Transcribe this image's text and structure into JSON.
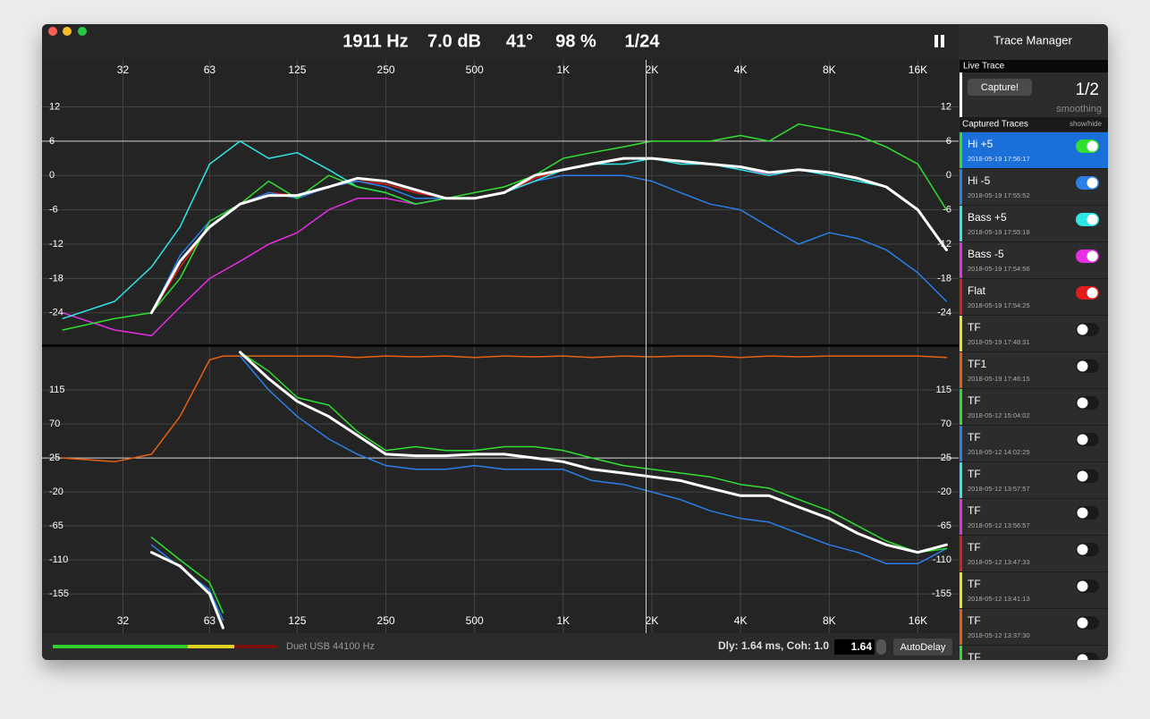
{
  "header": {
    "readouts": [
      "1911 Hz",
      "7.0 dB",
      "41°",
      "98 %",
      "1/24"
    ]
  },
  "chart_data": [
    {
      "type": "line",
      "xscale": "log",
      "xlim": [
        17,
        22000
      ],
      "ylim": [
        -29.5,
        20.2
      ],
      "xticks": [
        32,
        63,
        125,
        250,
        500,
        {
          "value": 1000,
          "label": "1K"
        },
        {
          "value": 2000,
          "label": "2K"
        },
        {
          "value": 4000,
          "label": "4K"
        },
        {
          "value": 8000,
          "label": "8K"
        },
        {
          "value": 16000,
          "label": "16K"
        }
      ],
      "yticks": [
        12,
        6,
        0,
        -6,
        -12,
        -18,
        -24
      ],
      "grid": true,
      "reference_y": 6,
      "cursor_x": 1911,
      "x": [
        20,
        30,
        40,
        50,
        63,
        80,
        100,
        125,
        160,
        200,
        250,
        315,
        400,
        500,
        630,
        800,
        1000,
        1250,
        1600,
        2000,
        2500,
        3150,
        4000,
        5000,
        6300,
        8000,
        10000,
        12500,
        16000,
        20000
      ],
      "series": [
        {
          "color": "#e21c1c",
          "width": 1.5,
          "values": [
            null,
            null,
            -24,
            -16,
            -9,
            -5,
            -3,
            -3.5,
            -2,
            -1,
            -1.5,
            -3,
            -4,
            -4,
            -3,
            -0.5,
            1,
            2,
            3,
            3,
            2.5,
            2,
            1.5,
            0.5,
            1,
            0.5,
            -0.5,
            -2,
            -6,
            -13
          ]
        },
        {
          "color": "#2a7fe8",
          "width": 1.5,
          "values": [
            null,
            null,
            -24,
            -14,
            -8,
            -5,
            -3,
            -4,
            -2,
            -1,
            -2,
            -4,
            -4,
            -4,
            -3,
            -1,
            0,
            0,
            0,
            -1,
            -3,
            -5,
            -6,
            -9,
            -12,
            -10,
            -11,
            -13,
            -17,
            -22
          ]
        },
        {
          "color": "#e62ee6",
          "width": 1.5,
          "values": [
            -24,
            -27,
            -28,
            -23,
            -18,
            -15,
            -12,
            -10,
            -6,
            -4,
            -4,
            -5,
            -4,
            -4,
            -3,
            -1,
            1,
            2,
            3,
            3,
            2.5,
            2,
            1.5,
            0,
            1,
            0.5,
            -0.5,
            -2,
            -6,
            -13
          ]
        },
        {
          "color": "#2ee6e6",
          "width": 1.5,
          "values": [
            -25,
            -22,
            -16,
            -9,
            2,
            6,
            3,
            4,
            1,
            -2,
            -3,
            -5,
            -4,
            -4,
            -3,
            -1,
            1,
            2,
            2,
            3,
            2,
            2,
            1,
            0,
            1,
            0,
            -1,
            -2,
            -6,
            -13
          ]
        },
        {
          "color": "#2fe02f",
          "width": 1.5,
          "values": [
            -27,
            -25,
            -24,
            -18,
            -8,
            -5,
            -1,
            -4,
            0,
            -2,
            -3,
            -5,
            -4,
            -3,
            -2,
            0,
            3,
            4,
            5,
            6,
            6,
            6,
            7,
            6,
            9,
            8,
            7,
            5,
            2,
            -6
          ]
        },
        {
          "color": "#ffffff",
          "width": 3,
          "values": [
            null,
            null,
            -24,
            -15,
            -9,
            -5,
            -3.5,
            -3.5,
            -2,
            -0.5,
            -1,
            -2.5,
            -4,
            -4,
            -3,
            0,
            1,
            2,
            3,
            3,
            2.5,
            2,
            1.5,
            0.5,
            1,
            0.5,
            -0.5,
            -2,
            -6,
            -13
          ]
        }
      ]
    },
    {
      "type": "line",
      "xscale": "log",
      "xlim": [
        17,
        22000
      ],
      "ylim": [
        -207,
        172
      ],
      "xticks": [
        32,
        63,
        125,
        250,
        500,
        {
          "value": 1000,
          "label": "1K"
        },
        {
          "value": 2000,
          "label": "2K"
        },
        {
          "value": 4000,
          "label": "4K"
        },
        {
          "value": 8000,
          "label": "8K"
        },
        {
          "value": 16000,
          "label": "16K"
        }
      ],
      "yticks": [
        115,
        70,
        25,
        -20,
        -65,
        -110,
        -155
      ],
      "grid": true,
      "reference_y": 25,
      "x": [
        20,
        30,
        40,
        50,
        63,
        70,
        75,
        80,
        100,
        125,
        160,
        200,
        250,
        315,
        400,
        500,
        630,
        800,
        1000,
        1250,
        1600,
        2000,
        2500,
        3150,
        4000,
        5000,
        6300,
        8000,
        10000,
        12500,
        16000,
        20000
      ],
      "series": [
        {
          "color": "#e8600f",
          "width": 1.5,
          "values": [
            25,
            20,
            30,
            80,
            155,
            160,
            160,
            160,
            160,
            160,
            160,
            158,
            160,
            159,
            160,
            158,
            160,
            159,
            160,
            158,
            160,
            159,
            160,
            160,
            158,
            160,
            159,
            160,
            160,
            160,
            160,
            158
          ]
        },
        {
          "color": "#2a7fe8",
          "width": 1.5,
          "values": [
            null,
            null,
            -90,
            -120,
            -150,
            -190,
            null,
            160,
            115,
            80,
            50,
            30,
            15,
            10,
            10,
            15,
            10,
            10,
            10,
            -5,
            -10,
            -20,
            -30,
            -45,
            -55,
            -60,
            -75,
            -90,
            -100,
            -115,
            -115,
            -95
          ]
        },
        {
          "color": "#2fe02f",
          "width": 1.5,
          "values": [
            null,
            null,
            -80,
            -110,
            -140,
            -180,
            null,
            165,
            140,
            105,
            95,
            60,
            35,
            40,
            35,
            35,
            40,
            40,
            35,
            25,
            15,
            10,
            5,
            0,
            -10,
            -15,
            -30,
            -45,
            -65,
            -85,
            -100,
            -95
          ]
        },
        {
          "color": "#ffffff",
          "width": 3,
          "values": [
            null,
            null,
            -100,
            -118,
            -155,
            -200,
            null,
            165,
            130,
            100,
            80,
            55,
            30,
            28,
            28,
            30,
            30,
            25,
            20,
            10,
            5,
            0,
            -5,
            -15,
            -25,
            -25,
            -40,
            -55,
            -75,
            -90,
            -100,
            -90
          ]
        }
      ]
    }
  ],
  "sidebar": {
    "title": "Trace Manager",
    "live_label": "Live Trace",
    "capture_button": "Capture!",
    "smoothing_value": "1/2",
    "smoothing_label": "smoothing",
    "captured_label": "Captured Traces",
    "show_hide": "show/hide",
    "traces": [
      {
        "name": "Hi +5",
        "date": "2018-05-19 17:56:17",
        "color": "#2fe02f",
        "on": true,
        "selected": true
      },
      {
        "name": "Hi -5",
        "date": "2018-05-19 17:55:52",
        "color": "#2a7fe8",
        "on": true
      },
      {
        "name": "Bass +5",
        "date": "2018-05-19 17:55:18",
        "color": "#2ee6e6",
        "on": true
      },
      {
        "name": "Bass -5",
        "date": "2018-05-19 17:54:56",
        "color": "#e62ee6",
        "on": true
      },
      {
        "name": "Flat",
        "date": "2018-05-19 17:54:25",
        "color": "#e21c1c",
        "on": true
      },
      {
        "name": "TF",
        "date": "2018-05-19 17:48:31",
        "color": "#f0e020",
        "on": false
      },
      {
        "name": "TF1",
        "date": "2018-05-19 17:46:15",
        "color": "#e8600f",
        "on": false
      },
      {
        "name": "TF",
        "date": "2018-05-12 15:04:02",
        "color": "#2fe02f",
        "on": false
      },
      {
        "name": "TF",
        "date": "2018-05-12 14:02:25",
        "color": "#2a7fe8",
        "on": false
      },
      {
        "name": "TF",
        "date": "2018-05-12 13:57:57",
        "color": "#2ee6e6",
        "on": false
      },
      {
        "name": "TF",
        "date": "2018-05-12 13:56:57",
        "color": "#e62ee6",
        "on": false
      },
      {
        "name": "TF",
        "date": "2018-05-12 13:47:33",
        "color": "#e21c1c",
        "on": false
      },
      {
        "name": "TF",
        "date": "2018-05-12 13:41:13",
        "color": "#f0e020",
        "on": false
      },
      {
        "name": "TF",
        "date": "2018-05-12 13:37:30",
        "color": "#e8600f",
        "on": false
      },
      {
        "name": "TF",
        "color": "#2fe02f",
        "on": false
      }
    ]
  },
  "footer": {
    "device": "Duet USB 44100 Hz",
    "delay_status": "Dly: 1.64 ms, Coh: 1.0",
    "delay_value": "1.64",
    "auto_button": "AutoDelay"
  }
}
